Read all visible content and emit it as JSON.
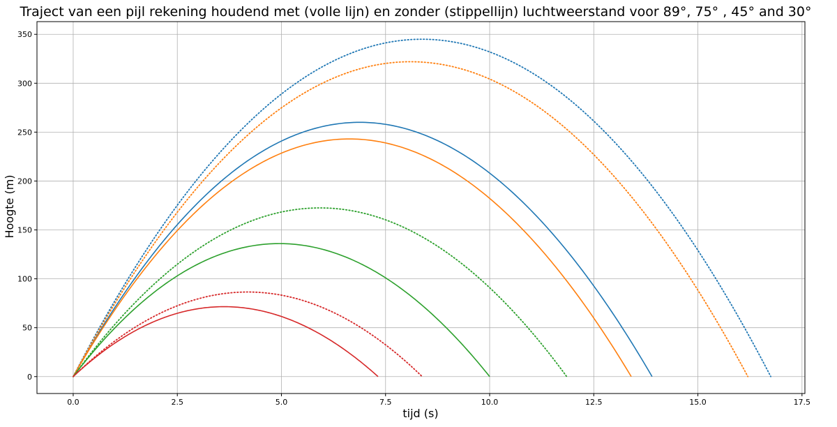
{
  "chart_data": {
    "type": "line",
    "title": "Traject van een pijl rekening houdend met (volle lijn) en zonder (stippellijn) luchtweerstand voor 89°, 75° , 45° and 30°",
    "xlabel": "tijd (s)",
    "ylabel": "Hoogte (m)",
    "xlim": [
      -0.87,
      17.57
    ],
    "ylim": [
      -17.3,
      363
    ],
    "xticks": [
      0,
      2.5,
      5,
      7.5,
      10,
      12.5,
      15,
      17.5
    ],
    "xtick_labels": [
      "0.0",
      "2.5",
      "5.0",
      "7.5",
      "10.0",
      "12.5",
      "15.0",
      "17.5"
    ],
    "yticks": [
      0,
      50,
      100,
      150,
      200,
      250,
      300,
      350
    ],
    "ytick_labels": [
      "0",
      "50",
      "100",
      "150",
      "200",
      "250",
      "300",
      "350"
    ],
    "grid": true,
    "legend": "none",
    "series": [
      {
        "color": "#1f77b4",
        "style": "solid",
        "t_end": 13.9,
        "peak_t": 6.95,
        "peak_h": 260
      },
      {
        "color": "#ff7f0e",
        "style": "solid",
        "t_end": 13.4,
        "peak_t": 6.7,
        "peak_h": 243
      },
      {
        "color": "#2ca02c",
        "style": "solid",
        "t_end": 10.0,
        "peak_t": 5.0,
        "peak_h": 136
      },
      {
        "color": "#d62728",
        "style": "solid",
        "t_end": 7.32,
        "peak_t": 3.66,
        "peak_h": 71.5
      },
      {
        "color": "#1f77b4",
        "style": "dotted",
        "t_end": 16.75,
        "peak_t": 8.375,
        "peak_h": 345
      },
      {
        "color": "#ff7f0e",
        "style": "dotted",
        "t_end": 16.2,
        "peak_t": 8.1,
        "peak_h": 322
      },
      {
        "color": "#2ca02c",
        "style": "dotted",
        "t_end": 11.85,
        "peak_t": 5.925,
        "peak_h": 172.5
      },
      {
        "color": "#d62728",
        "style": "dotted",
        "t_end": 8.38,
        "peak_t": 4.19,
        "peak_h": 86.5
      }
    ]
  }
}
